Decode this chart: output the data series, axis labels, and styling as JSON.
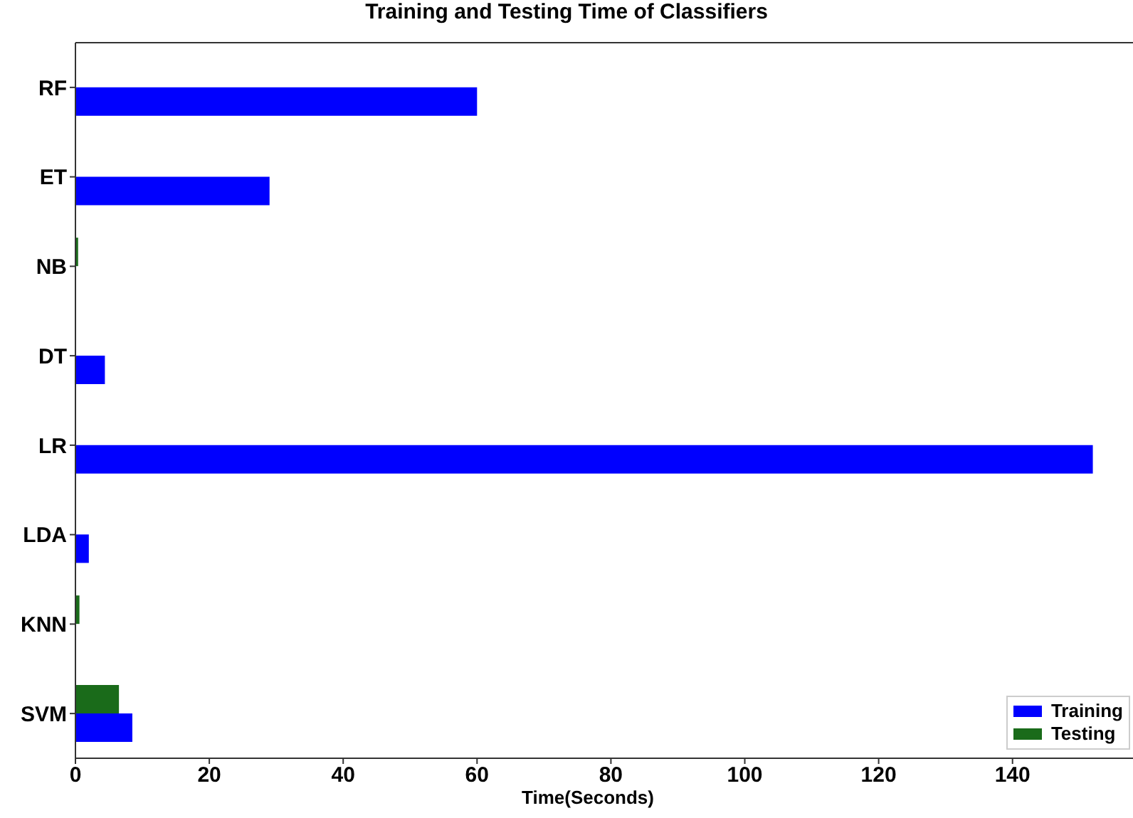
{
  "chart_data": {
    "type": "bar",
    "orientation": "horizontal",
    "title": "Training and Testing Time of Classifiers",
    "xlabel": "Time(Seconds)",
    "categories": [
      "RF",
      "ET",
      "NB",
      "DT",
      "LR",
      "LDA",
      "KNN",
      "SVM"
    ],
    "series": [
      {
        "name": "Training",
        "color": "#0000ff",
        "values": [
          60,
          29,
          null,
          4.4,
          152,
          2,
          0,
          8.5
        ]
      },
      {
        "name": "Testing",
        "color": "#1a6b1a",
        "values": [
          0,
          0,
          0.4,
          0,
          0,
          0,
          0.6,
          6.5
        ]
      }
    ],
    "xlim": [
      0,
      158
    ],
    "xticks": [
      0,
      20,
      40,
      60,
      80,
      100,
      120,
      140
    ],
    "grid": false,
    "legend": "bottom right"
  }
}
